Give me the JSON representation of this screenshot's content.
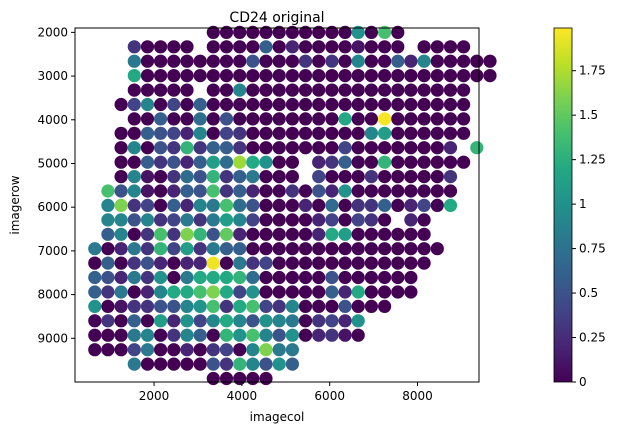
{
  "chart_data": {
    "type": "scatter",
    "title": "CD24 original",
    "xlabel": "imagecol",
    "ylabel": "imagerow",
    "xlim": [
      200,
      9400
    ],
    "ylim": [
      10000,
      1900
    ],
    "y_inverted": true,
    "xticks": [
      2000,
      4000,
      6000,
      8000
    ],
    "yticks": [
      2000,
      3000,
      4000,
      5000,
      6000,
      7000,
      8000,
      9000
    ],
    "grid": false,
    "colormap": "viridis",
    "colorbar": {
      "range": [
        0,
        1.99
      ],
      "ticks": [
        0,
        0.25,
        0.5,
        0.75,
        1,
        1.25,
        1.5,
        1.75
      ],
      "tick_labels": [
        "0",
        "0.25",
        "0.5",
        "0.75",
        "1",
        "1.25",
        "1.5",
        "1.75"
      ]
    },
    "grid_step": {
      "dx": 300,
      "dy": 330,
      "x0": 650,
      "y0": 2000
    },
    "rows": [
      {
        "y": 2000,
        "cols": [
          9,
          28
        ],
        "values": {
          "9": 0,
          "10": 0,
          "11": 0,
          "12": 0,
          "13": 0,
          "14": 0,
          "15": 0,
          "16": 0,
          "17": 0,
          "18": 0,
          "19": 0,
          "20": 1.0,
          "21": 0,
          "22": 1.4,
          "23": 0
        }
      },
      {
        "y": 2330,
        "cols": [
          3,
          28
        ],
        "values": {
          "3": 0.3,
          "4": 0,
          "5": 0,
          "6": 0,
          "7": 0,
          "9": 0,
          "10": 0,
          "11": 0,
          "12": 0,
          "13": 0.6,
          "14": 0,
          "15": 0.2,
          "16": 0,
          "17": 0,
          "18": 0,
          "19": 0,
          "20": 0.1,
          "21": 0,
          "22": 0,
          "23": 0,
          "25": 0,
          "26": 0,
          "27": 0,
          "28": 0
        }
      },
      {
        "y": 2660,
        "cols": [
          3,
          30
        ],
        "values": {
          "3": 0.8,
          "4": 0,
          "5": 0,
          "6": 0,
          "7": 0,
          "8": 0,
          "9": 0,
          "10": 0,
          "11": 0,
          "12": 0.5,
          "13": 0,
          "14": 0,
          "15": 0,
          "16": 0.3,
          "17": 0,
          "18": 0.3,
          "19": 0,
          "20": 0.9,
          "21": 0,
          "22": 0,
          "23": 0.6,
          "24": 0.2,
          "25": 0.9,
          "26": 0,
          "27": 0,
          "28": 0,
          "29": 0,
          "30": 0
        }
      },
      {
        "y": 2990,
        "cols": [
          3,
          30
        ],
        "values": {
          "3": 1.2,
          "4": 0,
          "5": 0,
          "6": 0,
          "7": 0,
          "8": 0,
          "9": 0,
          "10": 0,
          "11": 0,
          "12": 0,
          "13": 0,
          "14": 0,
          "15": 0,
          "16": 0,
          "17": 0,
          "18": 0,
          "19": 0,
          "20": 0,
          "21": 0,
          "22": 0,
          "23": 0,
          "24": 0,
          "25": 0,
          "26": 0,
          "27": 0,
          "28": 0,
          "29": 0,
          "30": 0
        }
      },
      {
        "y": 3320,
        "cols": [
          3,
          28
        ],
        "values": {
          "3": 0,
          "4": 0,
          "5": 0,
          "6": 0,
          "7": 0,
          "9": 0,
          "10": 0,
          "11": 0.9,
          "12": 0,
          "13": 0,
          "14": 0,
          "15": 0,
          "16": 0,
          "17": 0,
          "18": 0,
          "19": 0,
          "20": 0,
          "21": 0,
          "22": 0,
          "23": 0,
          "24": 0,
          "25": 0,
          "26": 0,
          "27": 0,
          "28": 0
        }
      },
      {
        "y": 3650,
        "cols": [
          2,
          28
        ],
        "values": {
          "2": 0,
          "3": 0.4,
          "4": 0.9,
          "5": 0,
          "6": 0.4,
          "7": 0,
          "8": 0.6,
          "9": 0,
          "10": 0,
          "11": 0,
          "12": 0,
          "13": 0,
          "14": 0,
          "15": 0,
          "16": 0,
          "17": 0,
          "18": 0,
          "19": 0,
          "20": 0,
          "21": 0,
          "22": 0,
          "23": 0,
          "24": 0,
          "25": 0,
          "26": 0,
          "27": 0,
          "28": 0
        }
      },
      {
        "y": 3980,
        "cols": [
          3,
          28
        ],
        "values": {
          "3": 0,
          "4": 0,
          "5": 0.6,
          "6": 0,
          "7": 0,
          "8": 0.7,
          "9": 0,
          "10": 0.5,
          "11": 0,
          "12": 0,
          "13": 0,
          "14": 0,
          "15": 0,
          "16": 0,
          "17": 0,
          "18": 0,
          "19": 1.2,
          "20": 0,
          "21": 0,
          "22": 1.97,
          "23": 0,
          "24": 0,
          "25": 0,
          "26": 0,
          "27": 0,
          "28": 0
        }
      },
      {
        "y": 4310,
        "cols": [
          2,
          28
        ],
        "values": {
          "2": 0,
          "3": 0,
          "4": 0.6,
          "5": 0.5,
          "6": 0.4,
          "7": 0.2,
          "8": 0.9,
          "9": 0,
          "10": 0.4,
          "11": 0.3,
          "12": 0,
          "13": 0,
          "14": 0,
          "15": 0,
          "16": 0,
          "17": 0,
          "18": 0,
          "19": 0,
          "20": 0,
          "21": 0.9,
          "22": 1.1,
          "23": 0,
          "24": 0,
          "25": 0,
          "26": 0,
          "27": 0,
          "28": 0
        }
      },
      {
        "y": 4640,
        "cols": [
          2,
          29
        ],
        "values": {
          "2": 0,
          "3": 0.9,
          "4": 0,
          "5": 0.5,
          "6": 0.3,
          "7": 1.3,
          "8": 0.3,
          "9": 0.6,
          "10": 0.6,
          "11": 0.3,
          "12": 0,
          "13": 0,
          "14": 0,
          "15": 0,
          "16": 0,
          "17": 0,
          "18": 0,
          "19": 0.4,
          "20": 0,
          "21": 0,
          "22": 0,
          "23": 0,
          "24": 0,
          "25": 0,
          "26": 0,
          "27": 0.2,
          "29": 1.3
        }
      },
      {
        "y": 4970,
        "cols": [
          2,
          28
        ],
        "values": {
          "2": 0,
          "3": 0,
          "4": 0.6,
          "5": 0.3,
          "6": 0.5,
          "7": 0.2,
          "8": 0.6,
          "9": 1.1,
          "10": 0.7,
          "11": 1.7,
          "12": 1.2,
          "13": 1.0,
          "14": 0,
          "15": 0,
          "17": 0.2,
          "18": 0.3,
          "19": 0.6,
          "20": 0,
          "21": 0,
          "22": 1.3,
          "23": 0,
          "24": 0,
          "25": 0,
          "26": 0,
          "27": 0,
          "28": 0
        }
      },
      {
        "y": 5300,
        "cols": [
          2,
          27
        ],
        "values": {
          "2": 0,
          "3": 0.9,
          "4": 0.1,
          "5": 0,
          "6": 0.3,
          "7": 0.7,
          "8": 0.5,
          "9": 1.3,
          "10": 0.3,
          "11": 0.6,
          "12": 0.8,
          "13": 0,
          "14": 0,
          "15": 0,
          "17": 0.4,
          "18": 0,
          "19": 0,
          "20": 0,
          "21": 0.3,
          "22": 0,
          "23": 0,
          "24": 0,
          "25": 0,
          "26": 0,
          "27": 0.3
        }
      },
      {
        "y": 5630,
        "cols": [
          1,
          27
        ],
        "values": {
          "1": 1.4,
          "2": 0.5,
          "3": 0.9,
          "4": 0.1,
          "5": 0,
          "6": 0.2,
          "7": 0.6,
          "8": 0.5,
          "9": 1.4,
          "10": 0.3,
          "11": 0.6,
          "12": 0.2,
          "13": 0,
          "14": 0,
          "15": 0.3,
          "16": 0,
          "17": 0.5,
          "18": 0.2,
          "19": 1.0,
          "20": 0,
          "21": 0,
          "22": 0,
          "23": 0,
          "24": 0,
          "25": 0,
          "26": 0,
          "27": 0
        }
      },
      {
        "y": 5960,
        "cols": [
          1,
          27
        ],
        "values": {
          "1": 0.9,
          "2": 1.6,
          "3": 0.3,
          "4": 0.4,
          "5": 0,
          "6": 0.6,
          "7": 0.2,
          "8": 0.9,
          "9": 0.8,
          "10": 1.4,
          "11": 0.7,
          "12": 0.5,
          "13": 0,
          "14": 0,
          "15": 0,
          "16": 0.2,
          "17": 0,
          "18": 0.7,
          "19": 0,
          "20": 0.3,
          "21": 0.3,
          "22": 0.6,
          "23": 0,
          "24": 0.2,
          "25": 0.4,
          "26": 0,
          "27": 1.2
        }
      },
      {
        "y": 6290,
        "cols": [
          1,
          25
        ],
        "values": {
          "1": 0.9,
          "2": 0.9,
          "3": 0.5,
          "4": 0.9,
          "5": 0.3,
          "6": 0.4,
          "7": 0.8,
          "8": 0.3,
          "9": 0.8,
          "10": 1.1,
          "11": 0.9,
          "12": 0.4,
          "13": 0,
          "14": 0,
          "15": 0,
          "16": 0,
          "17": 0.2,
          "18": 0.4,
          "19": 0,
          "20": 0.4,
          "21": 0.3,
          "22": 0,
          "24": 0.2,
          "25": 0
        }
      },
      {
        "y": 6620,
        "cols": [
          1,
          25
        ],
        "values": {
          "1": 0.6,
          "2": 0.9,
          "3": 0,
          "4": 0.3,
          "5": 1.4,
          "6": 0.3,
          "7": 1.6,
          "8": 1.3,
          "9": 0.5,
          "10": 1.5,
          "11": 0.2,
          "12": 0,
          "13": 0,
          "14": 0,
          "15": 0,
          "16": 0,
          "17": 0.2,
          "18": 1.2,
          "19": 1.1,
          "20": 0,
          "21": 0,
          "22": 0,
          "23": 0,
          "24": 0,
          "25": 0
        }
      },
      {
        "y": 6950,
        "cols": [
          0,
          26
        ],
        "values": {
          "0": 0.8,
          "1": 0,
          "2": 0.2,
          "3": 0.8,
          "4": 0.3,
          "5": 1.3,
          "6": 0.4,
          "7": 1.1,
          "8": 0.3,
          "9": 0.8,
          "10": 0.6,
          "11": 0.6,
          "12": 0,
          "13": 0,
          "14": 0,
          "15": 0,
          "16": 0,
          "17": 0,
          "18": 0,
          "19": 0,
          "20": 0,
          "21": 0,
          "22": 0,
          "23": 0,
          "24": 0,
          "25": 0,
          "26": 0
        }
      },
      {
        "y": 7280,
        "cols": [
          0,
          25
        ],
        "values": {
          "0": 0,
          "1": 0.6,
          "2": 0,
          "3": 0.3,
          "4": 0.5,
          "5": 0.2,
          "6": 0,
          "7": 0.2,
          "8": 0.2,
          "9": 1.95,
          "10": 0,
          "11": 0.8,
          "12": 0.3,
          "13": 0.4,
          "14": 0,
          "15": 0,
          "16": 0,
          "17": 0,
          "18": 0,
          "19": 0,
          "20": 0,
          "21": 0,
          "22": 0,
          "23": 0,
          "24": 0,
          "25": 0
        }
      },
      {
        "y": 7610,
        "cols": [
          0,
          24
        ],
        "values": {
          "0": 0.6,
          "1": 0.5,
          "2": 0.2,
          "3": 0.8,
          "4": 0.3,
          "5": 1.0,
          "6": 0,
          "7": 0.8,
          "8": 1.2,
          "9": 1.2,
          "10": 1.2,
          "11": 1.3,
          "12": 0.7,
          "13": 0,
          "14": 0,
          "15": 0,
          "16": 0,
          "17": 0,
          "18": 0.5,
          "19": 0,
          "20": 0,
          "21": 0,
          "22": 0,
          "23": 0,
          "24": 0
        }
      },
      {
        "y": 7940,
        "cols": [
          0,
          24
        ],
        "values": {
          "0": 0.6,
          "1": 0.3,
          "2": 0.8,
          "3": 0,
          "4": 0.2,
          "5": 0.9,
          "6": 1.2,
          "7": 1.2,
          "8": 1.4,
          "9": 1.6,
          "10": 1.2,
          "11": 0.4,
          "12": 1.0,
          "13": 0,
          "14": 0,
          "15": 0,
          "16": 0,
          "17": 0,
          "18": 0.6,
          "19": 0.2,
          "20": 1.2,
          "21": 0,
          "22": 0,
          "23": 0,
          "24": 0
        }
      },
      {
        "y": 8270,
        "cols": [
          0,
          22
        ],
        "values": {
          "0": 1.0,
          "1": 0,
          "2": 0.1,
          "3": 0.3,
          "4": 0.3,
          "5": 0.5,
          "6": 0.5,
          "7": 0.9,
          "8": 1.0,
          "9": 1.4,
          "10": 0.3,
          "11": 1.2,
          "12": 1.4,
          "13": 0.4,
          "14": 0.3,
          "15": 0.9,
          "16": 0,
          "17": 0,
          "18": 0,
          "19": 0.5,
          "20": 0,
          "21": 0,
          "22": 0
        }
      },
      {
        "y": 8600,
        "cols": [
          0,
          20
        ],
        "values": {
          "0": 0,
          "1": 0.3,
          "2": 0,
          "3": 0.6,
          "4": 0,
          "5": 1.1,
          "6": 0.2,
          "7": 1.0,
          "8": 0.4,
          "9": 0.9,
          "10": 1.2,
          "11": 0.9,
          "12": 0.5,
          "13": 1.0,
          "14": 0.9,
          "15": 0.8,
          "16": 0,
          "17": 0.3,
          "18": 0.4,
          "19": 0.2,
          "20": 1.0
        }
      },
      {
        "y": 8930,
        "cols": [
          0,
          20
        ],
        "values": {
          "0": 0,
          "1": 0,
          "2": 0,
          "3": 0.8,
          "4": 0.9,
          "5": 0,
          "6": 0.3,
          "7": 0.9,
          "8": 0.6,
          "9": 0,
          "10": 1.3,
          "11": 1.0,
          "12": 1.4,
          "13": 0.9,
          "14": 0.5,
          "15": 1.0,
          "16": 0,
          "17": 0.2,
          "18": 0.3,
          "19": 0.1,
          "20": 0
        }
      },
      {
        "y": 9260,
        "cols": [
          0,
          15
        ],
        "values": {
          "0": 0,
          "1": 0,
          "2": 0,
          "3": 0.4,
          "4": 0.8,
          "5": 0,
          "6": 0,
          "7": 0.2,
          "8": 0,
          "9": 0.3,
          "10": 0.4,
          "11": 0,
          "12": 0.9,
          "13": 1.6,
          "14": 0.8,
          "15": 0.8
        }
      },
      {
        "y": 9590,
        "cols": [
          2,
          15
        ],
        "values": {
          "3": 0.8,
          "4": 0,
          "5": 0,
          "6": 0,
          "7": 0,
          "8": 0,
          "9": 0.5,
          "10": 0.3,
          "11": 1.3,
          "12": 0.9,
          "13": 0.5,
          "14": 1.0,
          "15": 0.6
        }
      },
      {
        "y": 9920,
        "cols": [
          9,
          13
        ],
        "values": {
          "9": 0,
          "10": 0,
          "11": 0,
          "12": 0,
          "13": 0
        }
      }
    ]
  }
}
